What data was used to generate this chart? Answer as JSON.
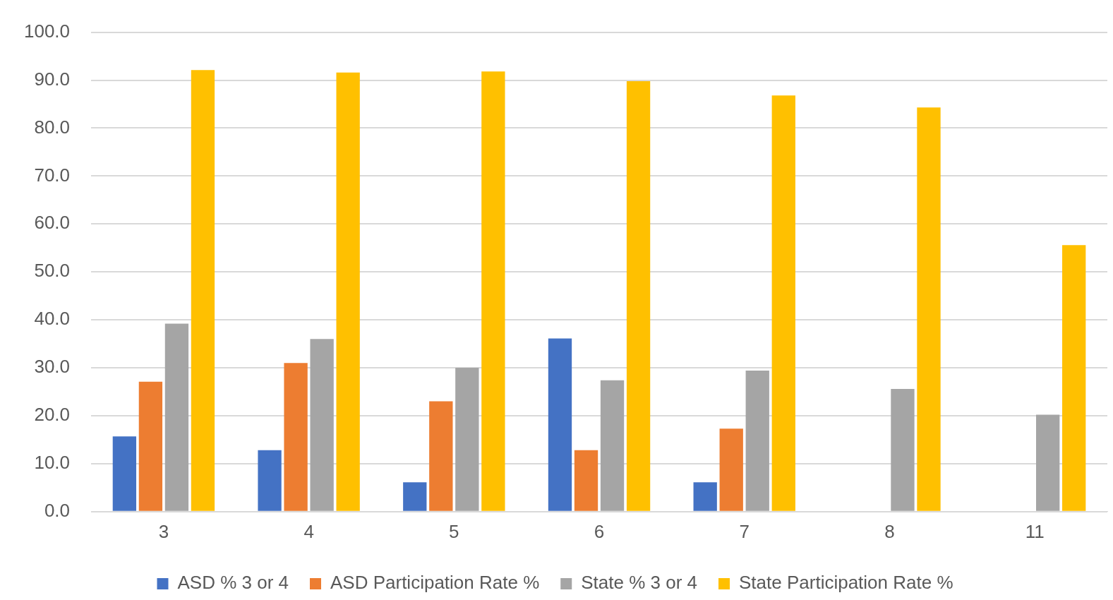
{
  "chart_data": {
    "type": "bar",
    "categories": [
      "3",
      "4",
      "5",
      "6",
      "7",
      "8",
      "11"
    ],
    "series": [
      {
        "name": "ASD % 3 or 4",
        "color": "#4472c4",
        "values": [
          15.7,
          12.8,
          6.1,
          36.1,
          6.1,
          null,
          null
        ]
      },
      {
        "name": "ASD Participation Rate %",
        "color": "#ed7d31",
        "values": [
          27.1,
          31.0,
          23.0,
          12.8,
          17.3,
          null,
          null
        ]
      },
      {
        "name": "State % 3 or 4",
        "color": "#a5a5a5",
        "values": [
          39.2,
          36.0,
          30.0,
          27.4,
          29.4,
          25.6,
          20.2
        ]
      },
      {
        "name": "State Participation Rate %",
        "color": "#ffc000",
        "values": [
          92.1,
          91.6,
          91.8,
          89.8,
          86.8,
          84.3,
          55.6
        ]
      }
    ],
    "ylim": [
      0,
      100
    ],
    "yticks": [
      {
        "value": 0,
        "label": "0.0"
      },
      {
        "value": 10,
        "label": "10.0"
      },
      {
        "value": 20,
        "label": "20.0"
      },
      {
        "value": 30,
        "label": "30.0"
      },
      {
        "value": 40,
        "label": "40.0"
      },
      {
        "value": 50,
        "label": "50.0"
      },
      {
        "value": 60,
        "label": "60.0"
      },
      {
        "value": 70,
        "label": "70.0"
      },
      {
        "value": 80,
        "label": "80.0"
      },
      {
        "value": 90,
        "label": "90.0"
      },
      {
        "value": 100,
        "label": "100.0"
      }
    ],
    "grid": "y",
    "legend": "bottom"
  }
}
